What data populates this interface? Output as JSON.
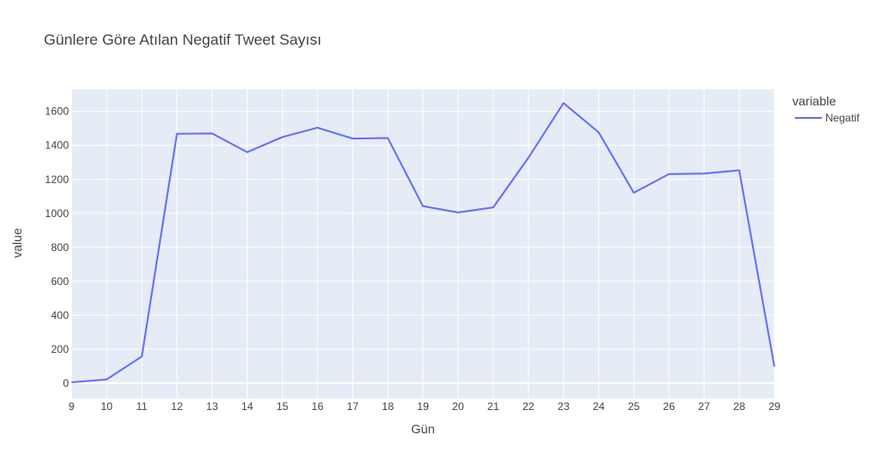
{
  "chart_data": {
    "type": "line",
    "title": "Günlere Göre Atılan Negatif Tweet Sayısı",
    "xlabel": "Gün",
    "ylabel": "value",
    "x": [
      9,
      10,
      11,
      12,
      13,
      14,
      15,
      16,
      17,
      18,
      19,
      20,
      21,
      22,
      23,
      24,
      25,
      26,
      27,
      28,
      29
    ],
    "xlim": [
      9,
      29
    ],
    "ylim": [
      -90,
      1730
    ],
    "y_ticks": [
      0,
      200,
      400,
      600,
      800,
      1000,
      1200,
      1400,
      1600
    ],
    "grid": true,
    "legend": {
      "title": "variable",
      "placement": "top-right outside plot"
    },
    "series": [
      {
        "name": "Negatif",
        "color": "#636efa",
        "values": [
          5,
          22,
          157,
          1468,
          1470,
          1360,
          1449,
          1504,
          1440,
          1443,
          1042,
          1005,
          1035,
          1327,
          1649,
          1477,
          1121,
          1231,
          1234,
          1253,
          97
        ]
      }
    ],
    "plot_bg_color": "#e5ecf6",
    "grid_color": "#ffffff"
  }
}
